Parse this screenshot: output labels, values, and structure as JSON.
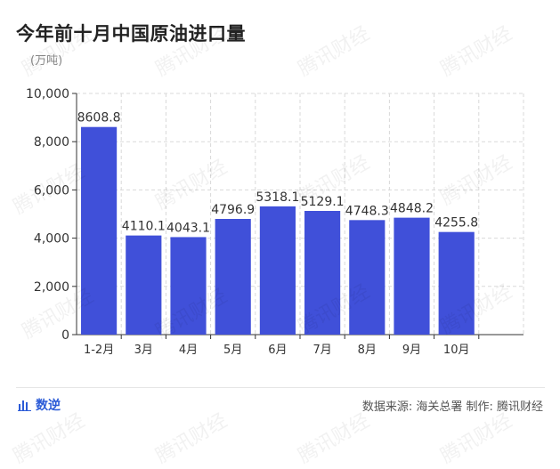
{
  "title": "今年前十月中国原油进口量",
  "unit": "(万吨)",
  "brand": "数逆",
  "source": "数据来源: 海关总署 制作: 腾讯财经",
  "watermark": "腾讯财经",
  "colors": {
    "bar": "#4050d9",
    "grid": "#d9d9d9",
    "axis": "#333333",
    "label": "#333333"
  },
  "chart_data": {
    "type": "bar",
    "categories": [
      "1-2月",
      "3月",
      "4月",
      "5月",
      "6月",
      "7月",
      "8月",
      "9月",
      "10月"
    ],
    "values": [
      8608.8,
      4110.1,
      4043.1,
      4796.9,
      5318.1,
      5129.1,
      4748.3,
      4848.2,
      4255.8
    ],
    "value_labels": [
      "8608.8",
      "4110.1",
      "4043.1",
      "4796.9",
      "5318.1",
      "5129.1",
      "4748.3",
      "4848.2",
      "4255.8"
    ],
    "yticks": [
      "0",
      "2,000",
      "4,000",
      "6,000",
      "8,000",
      "10,000"
    ],
    "ytick_values": [
      0,
      2000,
      4000,
      6000,
      8000,
      10000
    ],
    "ylim": [
      0,
      10000
    ],
    "grid": true,
    "legend": "none"
  }
}
